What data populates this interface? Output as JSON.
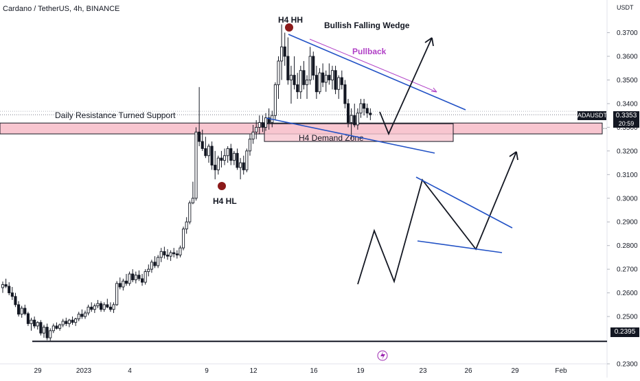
{
  "header": {
    "title": "Cardano / TetherUS, 4h, BINANCE"
  },
  "price_axis": {
    "unit": "USDT",
    "ticks": [
      "0.3700",
      "0.3600",
      "0.3500",
      "0.3400",
      "0.3300",
      "0.3200",
      "0.3100",
      "0.3000",
      "0.2900",
      "0.2800",
      "0.2700",
      "0.2600",
      "0.2500",
      "0.2300"
    ],
    "current_ticker": "ADAUSDT",
    "current_price": "0.3353",
    "countdown": "20:59",
    "support_level": "0.2395"
  },
  "time_axis": {
    "ticks": [
      "29",
      "2023",
      "4",
      "9",
      "12",
      "16",
      "19",
      "23",
      "26",
      "29",
      "Feb"
    ]
  },
  "annotations": {
    "hh": "H4 HH",
    "hl": "H4 HL",
    "pattern": "Bullish Falling Wedge",
    "pullback": "Pullback",
    "resistance": "Daily Resistance Turned Support",
    "demand": "H4 Demand Zone"
  },
  "colors": {
    "up": "#26a69a",
    "down": "#131722",
    "wedge": "#2151c5",
    "pullback": "#b03fc6",
    "zone_fill": "#f8c6d0",
    "zone_stroke": "#131722",
    "dot": "#8b1a1a"
  },
  "chart_data": {
    "type": "candlestick",
    "symbol": "ADAUSDT",
    "timeframe": "4h",
    "exchange": "BINANCE",
    "ylim": [
      0.23,
      0.378
    ],
    "key_levels": {
      "resistance_turned_support": 0.3295,
      "support": 0.2395,
      "demand_zone": [
        0.324,
        0.3315
      ],
      "current_price": 0.3353
    },
    "swing_points": [
      {
        "label": "H4 HH",
        "price": 0.3735
      },
      {
        "label": "H4 HL",
        "price": 0.3033
      }
    ],
    "ohlc": [
      [
        0.2622,
        0.2648,
        0.26,
        0.2635
      ],
      [
        0.2635,
        0.266,
        0.262,
        0.2628
      ],
      [
        0.2628,
        0.2645,
        0.259,
        0.26
      ],
      [
        0.26,
        0.2625,
        0.257,
        0.2585
      ],
      [
        0.2585,
        0.26,
        0.254,
        0.255
      ],
      [
        0.255,
        0.2565,
        0.25,
        0.251
      ],
      [
        0.251,
        0.2545,
        0.2495,
        0.2535
      ],
      [
        0.2535,
        0.255,
        0.2505,
        0.2512
      ],
      [
        0.2512,
        0.252,
        0.246,
        0.247
      ],
      [
        0.247,
        0.2495,
        0.244,
        0.2485
      ],
      [
        0.2485,
        0.25,
        0.245,
        0.246
      ],
      [
        0.246,
        0.248,
        0.2445,
        0.2475
      ],
      [
        0.2475,
        0.2485,
        0.242,
        0.243
      ],
      [
        0.243,
        0.2465,
        0.241,
        0.2455
      ],
      [
        0.2455,
        0.247,
        0.24,
        0.241
      ],
      [
        0.241,
        0.245,
        0.2398,
        0.244
      ],
      [
        0.244,
        0.247,
        0.243,
        0.246
      ],
      [
        0.246,
        0.2475,
        0.2445,
        0.245
      ],
      [
        0.245,
        0.247,
        0.244,
        0.2465
      ],
      [
        0.2465,
        0.249,
        0.2455,
        0.248
      ],
      [
        0.248,
        0.2495,
        0.246,
        0.247
      ],
      [
        0.247,
        0.249,
        0.2455,
        0.2485
      ],
      [
        0.2485,
        0.25,
        0.2465,
        0.2475
      ],
      [
        0.2475,
        0.2495,
        0.246,
        0.249
      ],
      [
        0.249,
        0.252,
        0.248,
        0.251
      ],
      [
        0.251,
        0.253,
        0.249,
        0.25
      ],
      [
        0.25,
        0.2525,
        0.249,
        0.2515
      ],
      [
        0.2515,
        0.255,
        0.2505,
        0.254
      ],
      [
        0.254,
        0.256,
        0.252,
        0.253
      ],
      [
        0.253,
        0.2555,
        0.2515,
        0.2545
      ],
      [
        0.2545,
        0.257,
        0.2535,
        0.2555
      ],
      [
        0.2555,
        0.2565,
        0.252,
        0.253
      ],
      [
        0.253,
        0.256,
        0.252,
        0.255
      ],
      [
        0.255,
        0.2575,
        0.2535,
        0.254
      ],
      [
        0.254,
        0.256,
        0.252,
        0.253
      ],
      [
        0.253,
        0.256,
        0.2515,
        0.255
      ],
      [
        0.255,
        0.265,
        0.2545,
        0.264
      ],
      [
        0.264,
        0.2665,
        0.2615,
        0.2625
      ],
      [
        0.2625,
        0.266,
        0.261,
        0.265
      ],
      [
        0.265,
        0.268,
        0.263,
        0.264
      ],
      [
        0.264,
        0.269,
        0.263,
        0.268
      ],
      [
        0.268,
        0.27,
        0.2645,
        0.2655
      ],
      [
        0.2655,
        0.269,
        0.264,
        0.2675
      ],
      [
        0.2675,
        0.2695,
        0.265,
        0.266
      ],
      [
        0.266,
        0.268,
        0.263,
        0.2645
      ],
      [
        0.2645,
        0.27,
        0.2635,
        0.269
      ],
      [
        0.269,
        0.272,
        0.267,
        0.27
      ],
      [
        0.27,
        0.274,
        0.2685,
        0.273
      ],
      [
        0.273,
        0.2755,
        0.2705,
        0.2715
      ],
      [
        0.2715,
        0.276,
        0.2705,
        0.275
      ],
      [
        0.275,
        0.279,
        0.273,
        0.2775
      ],
      [
        0.2775,
        0.2795,
        0.2745,
        0.276
      ],
      [
        0.276,
        0.2785,
        0.274,
        0.2755
      ],
      [
        0.2755,
        0.278,
        0.2735,
        0.277
      ],
      [
        0.277,
        0.279,
        0.275,
        0.2765
      ],
      [
        0.2765,
        0.278,
        0.2745,
        0.276
      ],
      [
        0.276,
        0.28,
        0.275,
        0.279
      ],
      [
        0.279,
        0.288,
        0.278,
        0.287
      ],
      [
        0.287,
        0.292,
        0.285,
        0.29
      ],
      [
        0.29,
        0.299,
        0.289,
        0.298
      ],
      [
        0.298,
        0.307,
        0.2975,
        0.3
      ],
      [
        0.3,
        0.33,
        0.299,
        0.328
      ],
      [
        0.328,
        0.347,
        0.322,
        0.324
      ],
      [
        0.324,
        0.329,
        0.32,
        0.321
      ],
      [
        0.321,
        0.326,
        0.317,
        0.318
      ],
      [
        0.318,
        0.323,
        0.315,
        0.322
      ],
      [
        0.322,
        0.324,
        0.312,
        0.314
      ],
      [
        0.314,
        0.32,
        0.308,
        0.312
      ],
      [
        0.312,
        0.318,
        0.31,
        0.317
      ],
      [
        0.317,
        0.32,
        0.313,
        0.316
      ],
      [
        0.316,
        0.321,
        0.314,
        0.318
      ],
      [
        0.318,
        0.322,
        0.315,
        0.321
      ],
      [
        0.321,
        0.323,
        0.314,
        0.316
      ],
      [
        0.316,
        0.32,
        0.314,
        0.319
      ],
      [
        0.319,
        0.321,
        0.312,
        0.313
      ],
      [
        0.313,
        0.317,
        0.308,
        0.315
      ],
      [
        0.315,
        0.318,
        0.31,
        0.312
      ],
      [
        0.312,
        0.321,
        0.311,
        0.32
      ],
      [
        0.32,
        0.327,
        0.318,
        0.325
      ],
      [
        0.325,
        0.331,
        0.323,
        0.328
      ],
      [
        0.328,
        0.333,
        0.325,
        0.33
      ],
      [
        0.33,
        0.335,
        0.327,
        0.332
      ],
      [
        0.332,
        0.335,
        0.328,
        0.33
      ],
      [
        0.33,
        0.336,
        0.3285,
        0.334
      ],
      [
        0.334,
        0.338,
        0.329,
        0.332
      ],
      [
        0.332,
        0.337,
        0.33,
        0.335
      ],
      [
        0.335,
        0.349,
        0.333,
        0.348
      ],
      [
        0.348,
        0.36,
        0.342,
        0.358
      ],
      [
        0.358,
        0.3735,
        0.35,
        0.364
      ],
      [
        0.364,
        0.37,
        0.356,
        0.36
      ],
      [
        0.36,
        0.368,
        0.348,
        0.35
      ],
      [
        0.35,
        0.356,
        0.34,
        0.352
      ],
      [
        0.352,
        0.36,
        0.346,
        0.348
      ],
      [
        0.348,
        0.353,
        0.342,
        0.345
      ],
      [
        0.345,
        0.356,
        0.342,
        0.354
      ],
      [
        0.354,
        0.358,
        0.346,
        0.348
      ],
      [
        0.348,
        0.352,
        0.342,
        0.35
      ],
      [
        0.35,
        0.364,
        0.348,
        0.36
      ],
      [
        0.36,
        0.362,
        0.35,
        0.352
      ],
      [
        0.352,
        0.356,
        0.342,
        0.345
      ],
      [
        0.345,
        0.355,
        0.344,
        0.353
      ],
      [
        0.353,
        0.357,
        0.347,
        0.349
      ],
      [
        0.349,
        0.354,
        0.345,
        0.352
      ],
      [
        0.352,
        0.357,
        0.348,
        0.35
      ],
      [
        0.35,
        0.356,
        0.346,
        0.354
      ],
      [
        0.354,
        0.356,
        0.344,
        0.346
      ],
      [
        0.346,
        0.352,
        0.342,
        0.351
      ],
      [
        0.351,
        0.354,
        0.346,
        0.348
      ],
      [
        0.348,
        0.35,
        0.338,
        0.34
      ],
      [
        0.34,
        0.342,
        0.33,
        0.332
      ],
      [
        0.332,
        0.338,
        0.325,
        0.335
      ],
      [
        0.335,
        0.34,
        0.33,
        0.331
      ],
      [
        0.331,
        0.338,
        0.329,
        0.336
      ],
      [
        0.336,
        0.342,
        0.334,
        0.34
      ],
      [
        0.34,
        0.342,
        0.335,
        0.338
      ],
      [
        0.338,
        0.34,
        0.334,
        0.336
      ],
      [
        0.336,
        0.338,
        0.333,
        0.3353
      ]
    ]
  }
}
